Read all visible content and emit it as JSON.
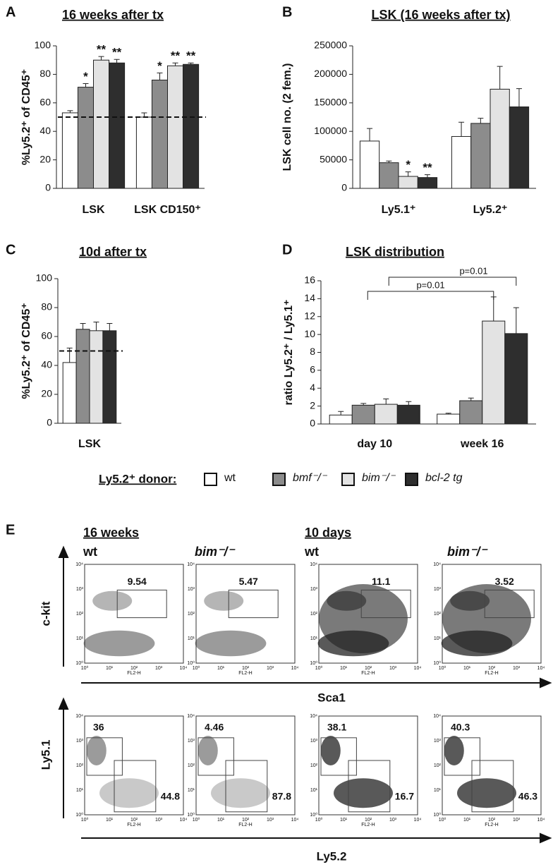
{
  "chart_data": [
    {
      "type": "bar",
      "panel": "A",
      "title": "16 weeks after tx",
      "y_label": "%Ly5.2⁺ of CD45⁺",
      "categories": [
        "LSK",
        "LSK CD150⁺"
      ],
      "ylim": [
        0,
        100
      ],
      "yticks": [
        0,
        20,
        40,
        60,
        80,
        100
      ],
      "reference_line": 50,
      "series": [
        {
          "color": "#ffffff",
          "values": [
            53,
            50
          ],
          "errors": [
            1.5,
            3
          ]
        },
        {
          "color": "#8c8c8c",
          "values": [
            71,
            76
          ],
          "errors": [
            2.5,
            5
          ],
          "stars": [
            "*",
            "*"
          ]
        },
        {
          "color": "#e3e3e3",
          "values": [
            90,
            86
          ],
          "errors": [
            2.5,
            2
          ],
          "stars": [
            "**",
            "**"
          ]
        },
        {
          "color": "#2e2e2e",
          "values": [
            88,
            87
          ],
          "errors": [
            2.5,
            1
          ],
          "stars": [
            "**",
            "**"
          ]
        }
      ]
    },
    {
      "type": "bar",
      "panel": "B",
      "title": "LSK (16 weeks after tx)",
      "y_label": "LSK cell no. (2 fem.)",
      "categories": [
        "Ly5.1⁺",
        "Ly5.2⁺"
      ],
      "ylim": [
        0,
        250000
      ],
      "yticks": [
        0,
        50000,
        100000,
        150000,
        200000,
        250000
      ],
      "series": [
        {
          "color": "#ffffff",
          "values": [
            83000,
            91000
          ],
          "errors": [
            22000,
            25000
          ]
        },
        {
          "color": "#8c8c8c",
          "values": [
            45000,
            114000
          ],
          "errors": [
            3000,
            9000
          ]
        },
        {
          "color": "#e3e3e3",
          "values": [
            21000,
            174000
          ],
          "errors": [
            8000,
            40000
          ],
          "stars": [
            "*",
            null
          ]
        },
        {
          "color": "#2e2e2e",
          "values": [
            19000,
            143000
          ],
          "errors": [
            5000,
            32000
          ],
          "stars": [
            "**",
            null
          ]
        }
      ]
    },
    {
      "type": "bar",
      "panel": "C",
      "title": "10d after tx",
      "y_label": "%Ly5.2⁺ of CD45⁺",
      "categories": [
        "LSK"
      ],
      "ylim": [
        0,
        100
      ],
      "yticks": [
        0,
        20,
        40,
        60,
        80,
        100
      ],
      "reference_line": 50,
      "series": [
        {
          "color": "#ffffff",
          "values": [
            42
          ],
          "errors": [
            10
          ]
        },
        {
          "color": "#8c8c8c",
          "values": [
            65
          ],
          "errors": [
            4
          ]
        },
        {
          "color": "#e3e3e3",
          "values": [
            64
          ],
          "errors": [
            6
          ]
        },
        {
          "color": "#2e2e2e",
          "values": [
            64
          ],
          "errors": [
            5
          ]
        }
      ]
    },
    {
      "type": "bar",
      "panel": "D",
      "title": "LSK distribution",
      "y_label": "ratio Ly5.2⁺ / Ly5.1⁺",
      "categories": [
        "day 10",
        "week 16"
      ],
      "ylim": [
        0,
        16
      ],
      "yticks": [
        0,
        2,
        4,
        6,
        8,
        10,
        12,
        14,
        16
      ],
      "brackets": [
        {
          "label": "p=0.01"
        },
        {
          "label": "p=0.01"
        }
      ],
      "series": [
        {
          "color": "#ffffff",
          "values": [
            1.0,
            1.1
          ],
          "errors": [
            0.4,
            0.1
          ]
        },
        {
          "color": "#8c8c8c",
          "values": [
            2.1,
            2.6
          ],
          "errors": [
            0.2,
            0.3
          ]
        },
        {
          "color": "#e3e3e3",
          "values": [
            2.2,
            11.5
          ],
          "errors": [
            0.6,
            2.7
          ]
        },
        {
          "color": "#2e2e2e",
          "values": [
            2.1,
            10.1
          ],
          "errors": [
            0.4,
            2.9
          ]
        }
      ]
    }
  ],
  "legend": {
    "title": "Ly5.2⁺ donor:",
    "entries": [
      "wt",
      "bmf⁻/⁻",
      "bim⁻/⁻",
      "bcl-2 tg"
    ]
  },
  "flow": {
    "panel": "E",
    "groups": [
      "16 weeks",
      "10 days"
    ],
    "columns": [
      "wt",
      "bim⁻/⁻",
      "wt",
      "bim⁻/⁻"
    ],
    "axis_label": "FL2-H",
    "decades": [
      "10⁰",
      "10¹",
      "10²",
      "10³",
      "10⁴"
    ],
    "rows": [
      {
        "y_label": "c-kit",
        "x_label": "Sca1",
        "gates": [
          [
            9.54
          ],
          [
            5.47
          ],
          [
            11.1
          ],
          [
            3.52
          ]
        ]
      },
      {
        "y_label": "Ly5.1",
        "x_label": "Ly5.2",
        "gates": [
          [
            36,
            44.8
          ],
          [
            4.46,
            87.8
          ],
          [
            38.1,
            16.7
          ],
          [
            40.3,
            46.3
          ]
        ]
      }
    ]
  }
}
